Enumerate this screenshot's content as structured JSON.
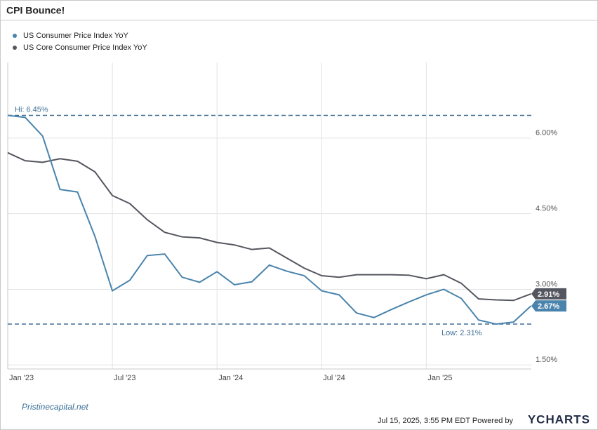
{
  "chart_data": {
    "type": "line",
    "title": "CPI Bounce!",
    "categories": [
      "Jan '23",
      null,
      null,
      null,
      null,
      null,
      "Jul '23",
      null,
      null,
      null,
      null,
      null,
      "Jan '24",
      null,
      null,
      null,
      null,
      null,
      "Jul '24",
      null,
      null,
      null,
      null,
      null,
      "Jan '25",
      null,
      null,
      null,
      null,
      null,
      null
    ],
    "series": [
      {
        "name": "US Consumer Price Index YoY",
        "color": "#4a84ad",
        "values": [
          6.45,
          6.41,
          6.04,
          4.98,
          4.93,
          4.05,
          2.97,
          3.18,
          3.67,
          3.7,
          3.24,
          3.14,
          3.35,
          3.09,
          3.15,
          3.48,
          3.36,
          3.27,
          2.97,
          2.89,
          2.53,
          2.44,
          2.6,
          2.75,
          2.89,
          3.0,
          2.82,
          2.39,
          2.31,
          2.35,
          2.67
        ],
        "end_label": "2.67%"
      },
      {
        "name": "US Core Consumer Price Index YoY",
        "color": "#54565f",
        "values": [
          5.71,
          5.55,
          5.52,
          5.59,
          5.54,
          5.33,
          4.86,
          4.7,
          4.38,
          4.13,
          4.04,
          4.02,
          3.93,
          3.88,
          3.79,
          3.82,
          3.62,
          3.42,
          3.27,
          3.24,
          3.29,
          3.29,
          3.29,
          3.28,
          3.21,
          3.29,
          3.12,
          2.81,
          2.79,
          2.78,
          2.91
        ],
        "end_label": "2.91%"
      }
    ],
    "ylim": [
      1.42,
      7.5
    ],
    "yticks": [
      {
        "value": 1.5,
        "label": "1.50%"
      },
      {
        "value": 3,
        "label": "3.00%"
      },
      {
        "value": 4.5,
        "label": "4.50%"
      },
      {
        "value": 6,
        "label": "6.00%"
      }
    ],
    "grid": true,
    "annotations": {
      "high": {
        "value": 6.45,
        "label": "Hi: 6.45%"
      },
      "low": {
        "value": 2.31,
        "label": "Low: 2.31%"
      }
    },
    "footer": {
      "timestamp": "Jul 15, 2025, 3:55 PM EDT Powered by",
      "brand": "YCHARTS",
      "logo": "Pristinecapital.net"
    }
  }
}
